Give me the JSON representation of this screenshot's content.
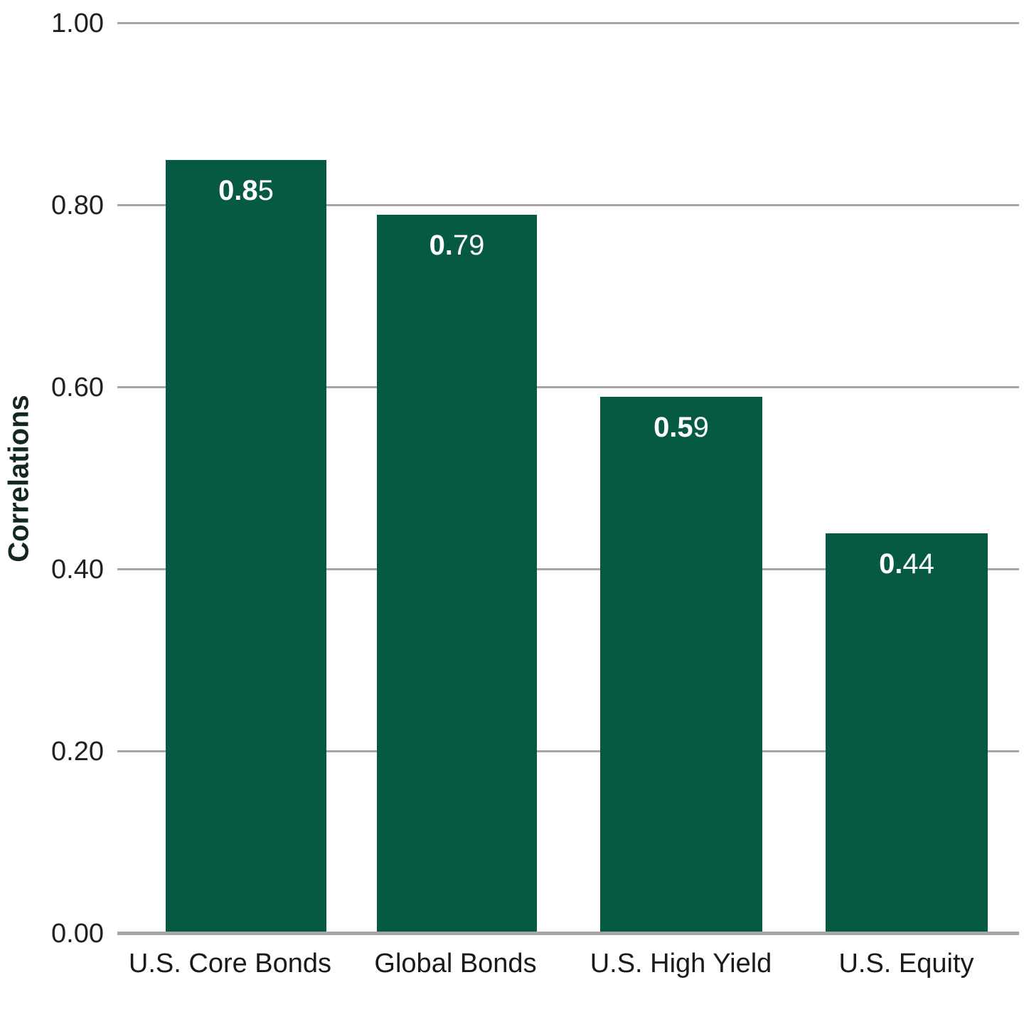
{
  "chart_data": {
    "type": "bar",
    "title": "",
    "xlabel": "",
    "ylabel": "Correlations",
    "categories": [
      "U.S. Core Bonds",
      "Global Bonds",
      "U.S. High Yield",
      "U.S. Equity"
    ],
    "values": [
      0.85,
      0.79,
      0.59,
      0.44
    ],
    "value_labels": [
      {
        "bold": "0.8",
        "regular": "5"
      },
      {
        "bold": "0.",
        "regular": "79"
      },
      {
        "bold": "0.5",
        "regular": "9"
      },
      {
        "bold": "0.",
        "regular": "44"
      }
    ],
    "ylim": [
      0,
      1
    ],
    "y_ticks": [
      "1.00",
      "0.80",
      "0.60",
      "0.40",
      "0.20",
      "0.00"
    ],
    "y_tick_values": [
      1.0,
      0.8,
      0.6,
      0.4,
      0.2,
      0.0
    ],
    "grid": "horizontal",
    "legend": "none",
    "colors": {
      "bar": "#065A43",
      "gridline": "#A6A6A6",
      "axis_line": "#A6A6A6",
      "ylabel_text": "#13291F",
      "tick_text": "#212121",
      "value_text": "#FFFFFF",
      "background": "#FFFFFF"
    }
  }
}
